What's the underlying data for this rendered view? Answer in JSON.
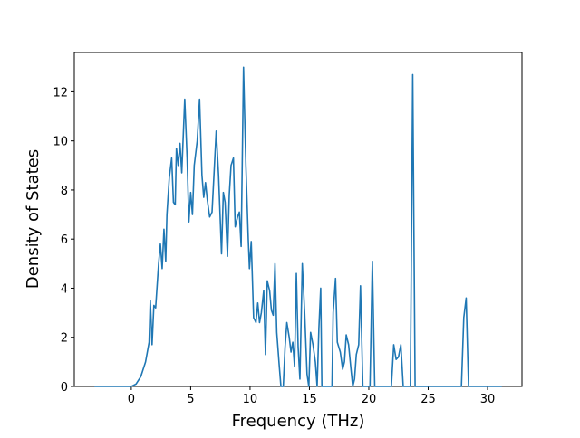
{
  "chart_data": {
    "type": "line",
    "xlabel": "Frequency (THz)",
    "ylabel": "Density of States",
    "series": [
      {
        "color": "#1f77b4",
        "x": [
          -3.1,
          0,
          0.4,
          0.8,
          1.2,
          1.5,
          1.6,
          1.75,
          1.9,
          2.05,
          2.3,
          2.45,
          2.6,
          2.75,
          2.9,
          3.0,
          3.2,
          3.4,
          3.55,
          3.7,
          3.8,
          3.95,
          4.1,
          4.25,
          4.5,
          4.7,
          4.85,
          5.0,
          5.15,
          5.3,
          5.55,
          5.75,
          5.95,
          6.1,
          6.25,
          6.4,
          6.6,
          6.8,
          6.95,
          7.15,
          7.35,
          7.6,
          7.75,
          7.9,
          8.1,
          8.25,
          8.4,
          8.6,
          8.75,
          8.95,
          9.1,
          9.25,
          9.45,
          9.65,
          9.85,
          9.95,
          10.1,
          10.3,
          10.5,
          10.65,
          10.8,
          10.95,
          11.15,
          11.3,
          11.45,
          11.65,
          11.8,
          11.95,
          12.1,
          12.25,
          12.45,
          12.6,
          12.8,
          12.95,
          13.1,
          13.3,
          13.45,
          13.6,
          13.75,
          13.9,
          14.05,
          14.2,
          14.4,
          14.6,
          14.8,
          14.95,
          15.1,
          15.3,
          15.5,
          15.65,
          15.8,
          15.95,
          16.05,
          16.9,
          17.0,
          17.2,
          17.35,
          17.6,
          17.8,
          17.95,
          18.1,
          18.3,
          18.5,
          18.65,
          18.8,
          18.95,
          19.15,
          19.3,
          19.5,
          20.1,
          20.3,
          20.5,
          21.9,
          22.1,
          22.3,
          22.5,
          22.7,
          22.9,
          23.5,
          23.7,
          23.9,
          27.8,
          28.0,
          28.2,
          28.4,
          31.2
        ],
        "values": [
          0,
          0,
          0.1,
          0.4,
          1.0,
          1.8,
          3.5,
          1.7,
          3.3,
          3.2,
          5.0,
          5.8,
          4.8,
          6.4,
          5.1,
          7.0,
          8.5,
          9.3,
          7.5,
          7.4,
          9.7,
          9.0,
          9.9,
          8.7,
          11.7,
          9.3,
          6.7,
          7.9,
          7.0,
          9.0,
          10.0,
          11.7,
          8.6,
          7.7,
          8.3,
          7.6,
          6.9,
          7.1,
          8.5,
          10.4,
          8.6,
          5.4,
          7.9,
          7.5,
          5.3,
          7.8,
          9.0,
          9.3,
          6.5,
          6.9,
          7.1,
          5.7,
          13.0,
          9.0,
          6.0,
          4.8,
          5.9,
          2.8,
          2.6,
          3.4,
          2.6,
          3.0,
          3.9,
          1.3,
          4.3,
          3.9,
          3.1,
          2.9,
          5.0,
          2.2,
          0.9,
          0,
          0,
          1.6,
          2.6,
          2.0,
          1.4,
          1.8,
          0.8,
          4.6,
          1.6,
          0.3,
          5.0,
          3.0,
          0.5,
          0,
          2.2,
          1.7,
          1.0,
          0,
          2.4,
          4.0,
          0,
          0,
          3.0,
          4.4,
          1.8,
          1.4,
          0.7,
          1.0,
          2.1,
          1.7,
          0.7,
          0,
          0.3,
          1.3,
          1.7,
          4.1,
          0,
          0,
          5.1,
          0,
          0,
          1.7,
          1.1,
          1.2,
          1.7,
          0,
          0,
          12.7,
          0,
          0,
          2.8,
          3.6,
          0,
          0
        ]
      }
    ],
    "xlim": [
      -4.8,
      32.9
    ],
    "xticks": [
      0,
      5,
      10,
      15,
      20,
      25,
      30
    ],
    "ylim": [
      0,
      13.6
    ],
    "yticks": [
      0,
      2,
      4,
      6,
      8,
      10,
      12
    ]
  }
}
